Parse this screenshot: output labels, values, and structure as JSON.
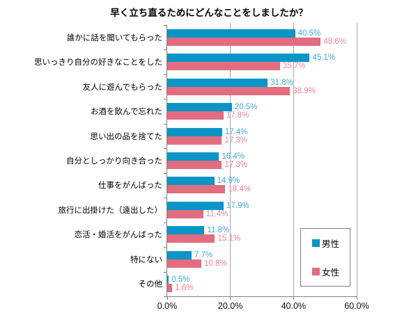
{
  "title": "早く立ち直るためにどんなことをしましたか？",
  "colors": {
    "male_bar": "#0b95c7",
    "male_label": "#3aa8dc",
    "female_bar": "#e26c80",
    "female_label": "#ef8095",
    "gridline": "#a6a6a6",
    "axis": "#808080"
  },
  "chart_data": {
    "type": "bar",
    "orientation": "horizontal",
    "title": "早く立ち直るためにどんなことをしましたか？",
    "categories": [
      "誰かに話を聞いてもらった",
      "思いっきり自分の好きなことをした",
      "友人に遊んでもらった",
      "お酒を飲んで忘れた",
      "思い出の品を捨てた",
      "自分としっかり向き合った",
      "仕事をがんばった",
      "旅行に出掛けた（遠出した）",
      "恋活・婚活をがんばった",
      "特にない",
      "その他"
    ],
    "series": [
      {
        "name": "男性",
        "color": "#0b95c7",
        "label_color": "#3aa8dc",
        "values": [
          40.5,
          45.1,
          31.8,
          20.5,
          17.4,
          16.4,
          14.9,
          17.9,
          11.8,
          7.7,
          0.5
        ]
      },
      {
        "name": "女性",
        "color": "#e26c80",
        "label_color": "#ef8095",
        "values": [
          48.6,
          35.7,
          38.9,
          17.8,
          17.3,
          17.3,
          18.4,
          11.4,
          15.1,
          10.8,
          1.6
        ]
      }
    ],
    "value_suffix": "%",
    "x_axis": {
      "min": 0,
      "max": 60,
      "tick_values": [
        0,
        20,
        40,
        60
      ],
      "tick_labels": [
        "0.0%",
        "20.0%",
        "40.0%",
        "60.0%"
      ]
    },
    "grid": true,
    "legend_position": "bottom-right"
  }
}
